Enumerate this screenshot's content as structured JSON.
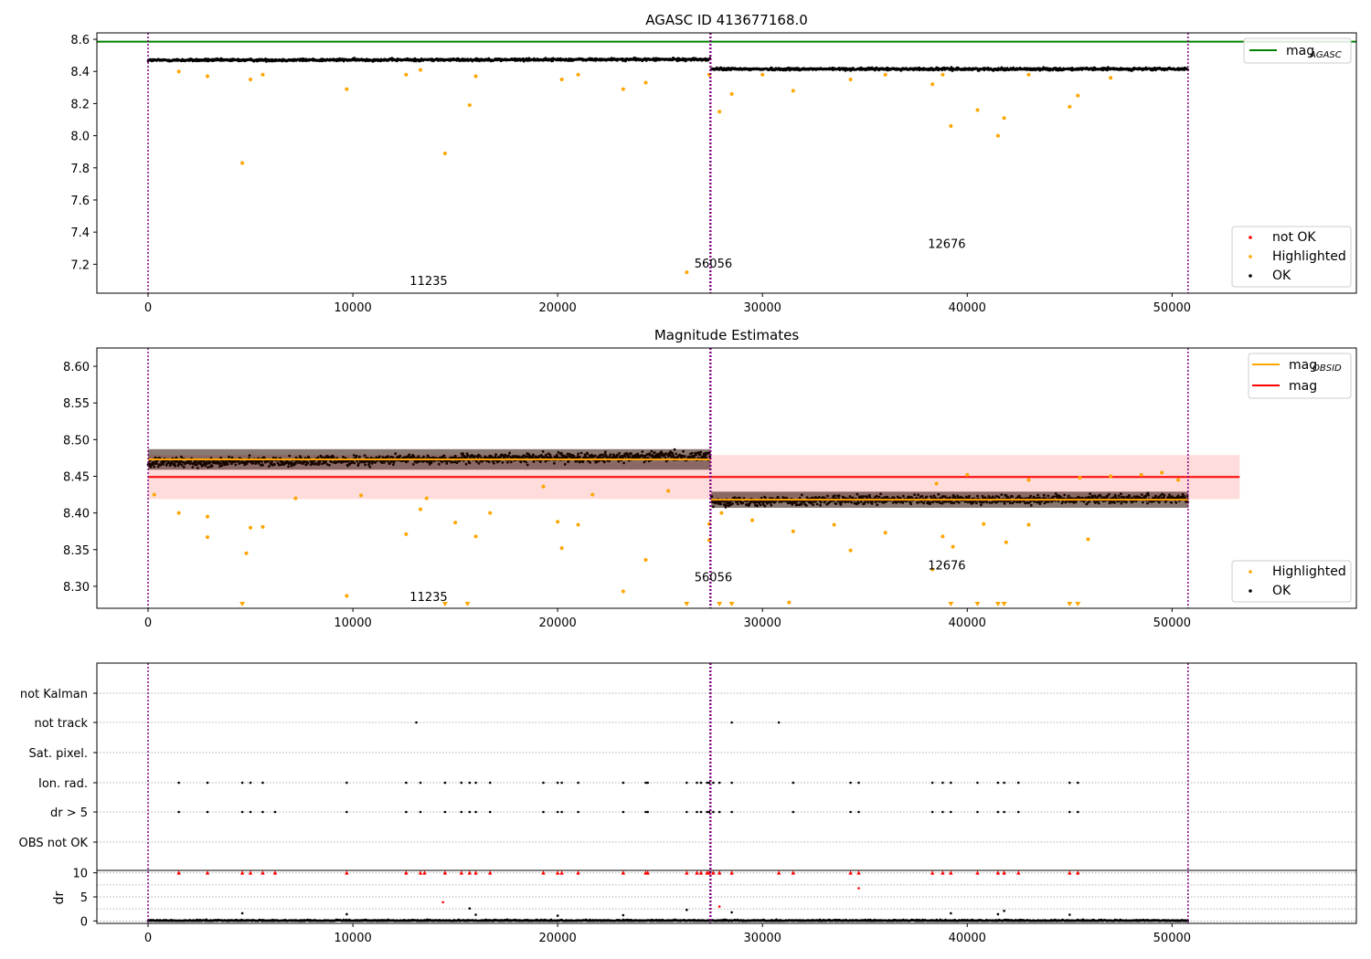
{
  "colors": {
    "ok": "#000000",
    "highlighted": "#ffa500",
    "not_ok": "#ff0000",
    "mag_agasc": "#008000",
    "mag_obsid": "#ffa500",
    "mag": "#ff0000",
    "mag_band": "#ffc0c0",
    "obsid_line": "#800080",
    "grid": "#b0b0b0"
  },
  "chart_data": [
    {
      "type": "scatter",
      "title": "AGASC ID 413677168.0",
      "xlim": [
        -2500,
        59000
      ],
      "ylim": [
        7.02,
        8.64
      ],
      "x_ticks": [
        0,
        10000,
        20000,
        30000,
        40000,
        50000
      ],
      "y_ticks": [
        7.2,
        7.4,
        7.6,
        7.8,
        8.0,
        8.2,
        8.4,
        8.6
      ],
      "y_tick_labels": [
        "7.2",
        "7.4",
        "7.6",
        "7.8",
        "8.0",
        "8.2",
        "8.4",
        "8.6"
      ],
      "hlines": [
        {
          "name": "mag",
          "subscript": "AGASC",
          "y": 8.585,
          "color": "#008000"
        }
      ],
      "obsid_boundaries": [
        0,
        27440,
        27480,
        50780
      ],
      "obsid_labels": [
        {
          "text": "11235",
          "x": 13700,
          "y": 7.07
        },
        {
          "text": "56056",
          "x": 27600,
          "y": 7.18
        },
        {
          "text": "12676",
          "x": 39000,
          "y": 7.3
        }
      ],
      "segments": [
        {
          "x": [
            0,
            27460
          ],
          "center": [
            8.47,
            8.475
          ],
          "spread": 0.012
        },
        {
          "x": [
            27500,
            50800
          ],
          "center": [
            8.415,
            8.415
          ],
          "spread": 0.012
        }
      ],
      "highlighted_points": [
        [
          4600,
          7.83
        ],
        [
          14500,
          7.89
        ],
        [
          2900,
          8.37
        ],
        [
          5000,
          8.35
        ],
        [
          9700,
          8.29
        ],
        [
          15700,
          8.19
        ],
        [
          20200,
          8.35
        ],
        [
          23200,
          8.29
        ],
        [
          24300,
          8.33
        ],
        [
          26300,
          7.15
        ],
        [
          27400,
          8.38
        ],
        [
          27900,
          8.15
        ],
        [
          28500,
          8.26
        ],
        [
          31500,
          8.28
        ],
        [
          34300,
          8.35
        ],
        [
          38300,
          8.32
        ],
        [
          39200,
          8.06
        ],
        [
          40500,
          8.16
        ],
        [
          41500,
          8.0
        ],
        [
          41800,
          8.11
        ],
        [
          45000,
          8.18
        ],
        [
          45400,
          8.25
        ],
        [
          1500,
          8.4
        ],
        [
          5600,
          8.38
        ],
        [
          12600,
          8.38
        ],
        [
          13300,
          8.41
        ],
        [
          16000,
          8.37
        ],
        [
          21000,
          8.38
        ],
        [
          30000,
          8.38
        ],
        [
          36000,
          8.38
        ],
        [
          38800,
          8.38
        ],
        [
          43000,
          8.38
        ],
        [
          47000,
          8.36
        ]
      ],
      "legend": [
        "not OK",
        "Highlighted",
        "OK"
      ],
      "legend_top": [
        "mag",
        "AGASC"
      ]
    },
    {
      "type": "scatter",
      "title": "Magnitude Estimates",
      "xlim": [
        -2500,
        59000
      ],
      "ylim": [
        8.27,
        8.625
      ],
      "x_ticks": [
        0,
        10000,
        20000,
        30000,
        40000,
        50000
      ],
      "y_ticks": [
        8.3,
        8.35,
        8.4,
        8.45,
        8.5,
        8.55,
        8.6
      ],
      "y_tick_labels": [
        "8.30",
        "8.35",
        "8.40",
        "8.45",
        "8.50",
        "8.55",
        "8.60"
      ],
      "mag": 8.449,
      "mag_band": [
        8.419,
        8.479
      ],
      "mag_obsid": [
        {
          "x": [
            0,
            27460
          ],
          "y": 8.473
        },
        {
          "x": [
            27480,
            50800
          ],
          "y": 8.418
        }
      ],
      "obsid_boundaries": [
        0,
        27440,
        27480,
        50780
      ],
      "obsid_labels": [
        {
          "text": "11235",
          "x": 13700,
          "y": 8.28
        },
        {
          "text": "56056",
          "x": 27600,
          "y": 8.307
        },
        {
          "text": "12676",
          "x": 39000,
          "y": 8.323
        }
      ],
      "segments": [
        {
          "x": [
            0,
            27460
          ],
          "center": [
            8.468,
            8.478
          ],
          "spread": 0.01
        },
        {
          "x": [
            27500,
            50800
          ],
          "center": [
            8.416,
            8.42
          ],
          "spread": 0.01
        }
      ],
      "highlighted_points": [
        [
          300,
          8.425
        ],
        [
          1500,
          8.4
        ],
        [
          2900,
          8.395
        ],
        [
          2900,
          8.367
        ],
        [
          5000,
          8.38
        ],
        [
          4800,
          8.345
        ],
        [
          5600,
          8.381
        ],
        [
          7200,
          8.42
        ],
        [
          9700,
          8.287
        ],
        [
          10400,
          8.424
        ],
        [
          12600,
          8.371
        ],
        [
          13300,
          8.405
        ],
        [
          13600,
          8.42
        ],
        [
          15000,
          8.387
        ],
        [
          16000,
          8.368
        ],
        [
          16700,
          8.4
        ],
        [
          19300,
          8.436
        ],
        [
          20000,
          8.388
        ],
        [
          20200,
          8.352
        ],
        [
          21000,
          8.384
        ],
        [
          21700,
          8.425
        ],
        [
          23200,
          8.293
        ],
        [
          24300,
          8.336
        ],
        [
          25400,
          8.43
        ],
        [
          27400,
          8.385
        ],
        [
          27400,
          8.363
        ],
        [
          28000,
          8.4
        ],
        [
          29500,
          8.39
        ],
        [
          31500,
          8.375
        ],
        [
          31300,
          8.278
        ],
        [
          33500,
          8.384
        ],
        [
          34300,
          8.349
        ],
        [
          36000,
          8.373
        ],
        [
          38300,
          8.323
        ],
        [
          38800,
          8.368
        ],
        [
          39300,
          8.354
        ],
        [
          40800,
          8.385
        ],
        [
          41900,
          8.36
        ],
        [
          43000,
          8.384
        ],
        [
          45900,
          8.364
        ],
        [
          38500,
          8.44
        ],
        [
          40000,
          8.452
        ],
        [
          43000,
          8.445
        ],
        [
          45500,
          8.448
        ],
        [
          47000,
          8.45
        ],
        [
          48500,
          8.452
        ],
        [
          49500,
          8.455
        ],
        [
          50300,
          8.445
        ]
      ],
      "off_scale_markers": [
        4600,
        14500,
        15600,
        26300,
        27900,
        28500,
        39200,
        40500,
        41500,
        41800,
        45000,
        45400
      ],
      "legend": [
        "Highlighted",
        "OK"
      ],
      "legend_top": [
        [
          "mag",
          "OBSID"
        ],
        [
          "mag",
          ""
        ]
      ]
    },
    {
      "type": "scatter",
      "xlim": [
        -2500,
        59000
      ],
      "x_ticks": [
        0,
        10000,
        20000,
        30000,
        40000,
        50000
      ],
      "flag_categories": [
        "not Kalman",
        "not track",
        "Sat. pixel.",
        "Ion. rad.",
        "dr > 5",
        "OBS not OK"
      ],
      "flag_points": {
        "not track": [
          13100,
          28500,
          30800
        ],
        "Ion. rad.": [
          1500,
          2900,
          4600,
          5000,
          5600,
          9700,
          12600,
          13300,
          14500,
          15300,
          15700,
          16000,
          16700,
          19300,
          20000,
          20200,
          21000,
          23200,
          24300,
          24400,
          26300,
          26800,
          27000,
          27300,
          27400,
          27600,
          27900,
          28500,
          31500,
          34300,
          34700,
          38300,
          38800,
          39200,
          40500,
          41500,
          41800,
          42500,
          45000,
          45400
        ],
        "dr > 5": [
          1500,
          2900,
          4600,
          5000,
          5600,
          6200,
          9700,
          12600,
          13300,
          14500,
          15300,
          15700,
          16000,
          16700,
          19300,
          20000,
          20200,
          21000,
          23200,
          24300,
          24400,
          26300,
          26800,
          27000,
          27300,
          27400,
          27600,
          27900,
          28500,
          31500,
          34300,
          34700,
          38300,
          38800,
          39200,
          40500,
          41500,
          41800,
          42500,
          45000,
          45400
        ]
      },
      "dr_ylabel": "dr",
      "dr_ylim": [
        -0.5,
        10.5
      ],
      "dr_y_ticks": [
        0,
        5,
        10
      ],
      "dr_clip_points": [
        1500,
        2900,
        4600,
        5000,
        5600,
        6200,
        9700,
        12600,
        13300,
        13500,
        14500,
        15300,
        15700,
        16000,
        16700,
        19300,
        20000,
        20200,
        21000,
        23200,
        24300,
        24400,
        26300,
        26800,
        27000,
        27300,
        27400,
        27600,
        27900,
        28500,
        30800,
        31500,
        34300,
        34700,
        38300,
        38800,
        39200,
        40500,
        41500,
        41800,
        42500,
        45000,
        45400
      ],
      "dr_red_points": [
        [
          14400,
          3.9
        ],
        [
          34700,
          6.8
        ],
        [
          27900,
          3.0
        ]
      ],
      "dr_black_points": [
        [
          4600,
          1.6
        ],
        [
          9700,
          1.4
        ],
        [
          15700,
          2.6
        ],
        [
          16000,
          1.3
        ],
        [
          20000,
          1.1
        ],
        [
          23200,
          1.2
        ],
        [
          26300,
          2.3
        ],
        [
          28500,
          1.8
        ],
        [
          39200,
          1.6
        ],
        [
          41500,
          1.4
        ],
        [
          41800,
          2.1
        ],
        [
          45000,
          1.3
        ]
      ]
    }
  ]
}
